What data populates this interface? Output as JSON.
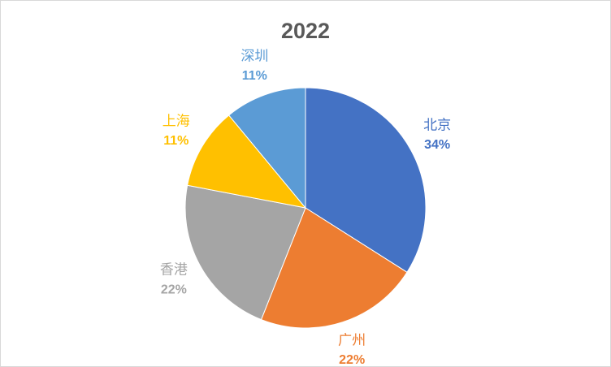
{
  "chart_data": {
    "type": "pie",
    "title": "2022",
    "categories": [
      "北京",
      "广州",
      "香港",
      "上海",
      "深圳"
    ],
    "values": [
      34,
      22,
      22,
      11,
      11
    ],
    "value_labels": [
      "34%",
      "22%",
      "22%",
      "11%",
      "11%"
    ],
    "colors": [
      "#4472c4",
      "#ed7d31",
      "#a5a5a5",
      "#ffc000",
      "#5b9bd5"
    ]
  }
}
